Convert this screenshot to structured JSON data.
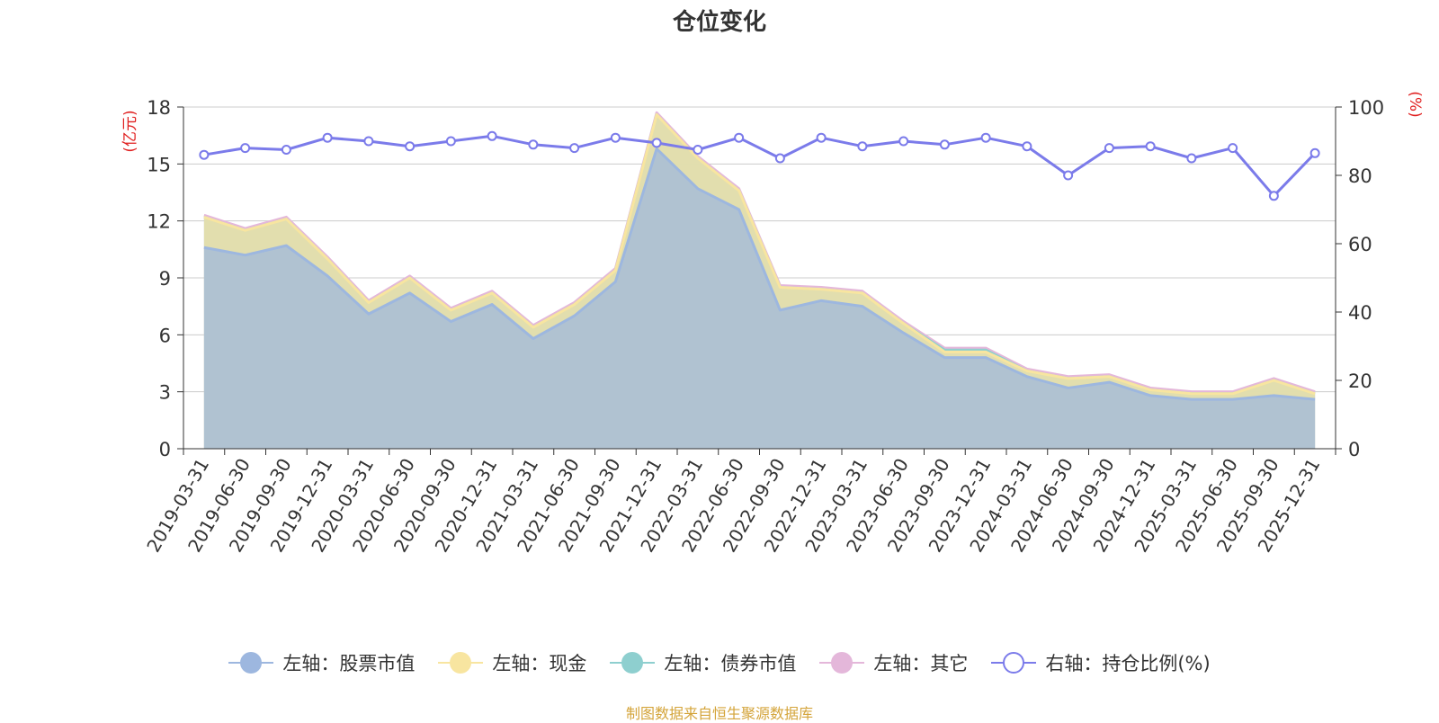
{
  "chart_data": {
    "type": "area",
    "title": "仓位变化",
    "left_axis_unit": "(亿元)",
    "right_axis_unit": "(%)",
    "left_ylim": [
      0,
      18
    ],
    "left_ticks": [
      "0",
      "3",
      "6",
      "9",
      "12",
      "15",
      "18"
    ],
    "right_ylim": [
      0,
      100
    ],
    "right_ticks": [
      "0",
      "20",
      "40",
      "60",
      "80",
      "100"
    ],
    "categories": [
      "2019-03-31",
      "2019-06-30",
      "2019-09-30",
      "2019-12-31",
      "2020-03-31",
      "2020-06-30",
      "2020-09-30",
      "2020-12-31",
      "2021-03-31",
      "2021-06-30",
      "2021-09-30",
      "2021-12-31",
      "2022-03-31",
      "2022-06-30",
      "2022-09-30",
      "2022-12-31",
      "2023-03-31",
      "2023-06-30",
      "2023-09-30",
      "2023-12-31",
      "2024-03-31",
      "2024-06-30",
      "2024-09-30",
      "2024-12-31",
      "2025-03-31",
      "2025-06-30",
      "2025-09-30",
      "2025-12-31"
    ],
    "series": [
      {
        "name": "左轴：股票市值",
        "axis": "left",
        "color": "#9db7df",
        "values": [
          10.6,
          10.2,
          10.7,
          9.1,
          7.1,
          8.2,
          6.7,
          7.6,
          5.8,
          7.0,
          8.8,
          15.8,
          13.7,
          12.6,
          7.3,
          7.8,
          7.5,
          6.1,
          4.8,
          4.8,
          3.8,
          3.2,
          3.5,
          2.8,
          2.6,
          2.6,
          2.8,
          2.6
        ]
      },
      {
        "name": "左轴：现金",
        "axis": "left",
        "color": "#f8e5a0",
        "values": [
          1.6,
          1.3,
          1.4,
          0.9,
          0.6,
          0.8,
          0.6,
          0.6,
          0.6,
          0.6,
          0.6,
          1.8,
          1.6,
          1.0,
          1.2,
          0.6,
          0.7,
          0.5,
          0.3,
          0.3,
          0.3,
          0.5,
          0.3,
          0.3,
          0.3,
          0.3,
          0.8,
          0.3
        ]
      },
      {
        "name": "左轴：债券市值",
        "axis": "left",
        "color": "#8ecfcf",
        "values": [
          0,
          0,
          0,
          0,
          0,
          0,
          0,
          0,
          0,
          0,
          0,
          0,
          0,
          0,
          0,
          0,
          0,
          0,
          0.1,
          0.1,
          0,
          0,
          0,
          0,
          0,
          0,
          0,
          0
        ]
      },
      {
        "name": "左轴：其它",
        "axis": "left",
        "color": "#e4b7da",
        "values": [
          0.1,
          0.1,
          0.1,
          0.1,
          0.1,
          0.1,
          0.1,
          0.1,
          0.1,
          0.1,
          0.1,
          0.1,
          0.1,
          0.1,
          0.1,
          0.1,
          0.1,
          0.1,
          0.1,
          0.1,
          0.1,
          0.1,
          0.1,
          0.1,
          0.1,
          0.1,
          0.1,
          0.1
        ]
      },
      {
        "name": "右轴：持仓比例(%)",
        "axis": "right",
        "color": "#7b7bea",
        "values": [
          86,
          88,
          87.5,
          91,
          90,
          88.5,
          90,
          91.5,
          89,
          88,
          91,
          89.5,
          87.5,
          91,
          85,
          91,
          88.5,
          90,
          89,
          91,
          88.5,
          80,
          88,
          88.5,
          85,
          88,
          74,
          86.5
        ]
      }
    ]
  },
  "source_note": "制图数据来自恒生聚源数据库"
}
